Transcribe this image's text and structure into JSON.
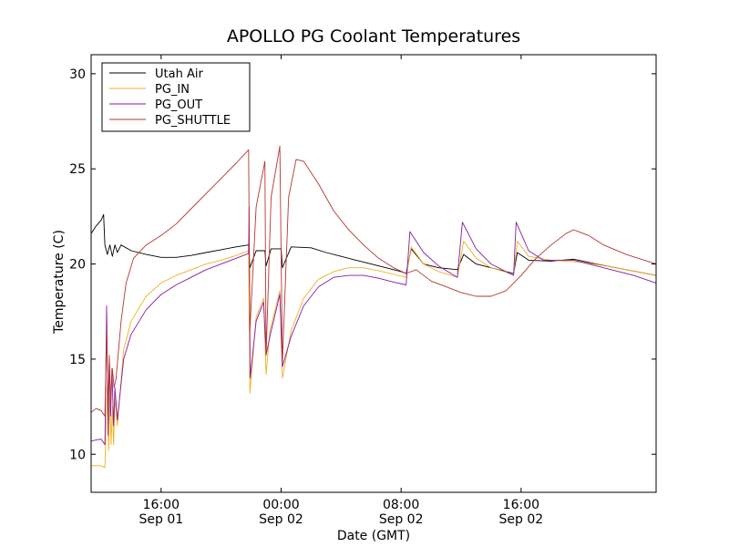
{
  "chart_data": {
    "type": "line",
    "title": "APOLLO PG Coolant Temperatures",
    "xlabel": "Date (GMT)",
    "ylabel": "Temperature (C)",
    "ylim": [
      8,
      31
    ],
    "yticks": [
      10,
      15,
      20,
      25,
      30
    ],
    "xlim": [
      "2015-09-01T11:20",
      "2015-09-03T01:00"
    ],
    "xticks": [
      {
        "at": "2015-09-01T16:00",
        "time": "16:00",
        "date": "Sep 01"
      },
      {
        "at": "2015-09-02T00:00",
        "time": "00:00",
        "date": "Sep 02"
      },
      {
        "at": "2015-09-02T08:00",
        "time": "08:00",
        "date": "Sep 02"
      },
      {
        "at": "2015-09-02T16:00",
        "time": "16:00",
        "date": "Sep 02"
      }
    ],
    "legend_position": "top-left",
    "grid": false,
    "series": [
      {
        "name": "Utah Air",
        "color": "#000000",
        "points": [
          [
            "2015-09-01T11:20",
            21.6
          ],
          [
            "2015-09-01T11:40",
            22.0
          ],
          [
            "2015-09-01T12:00",
            22.3
          ],
          [
            "2015-09-01T12:10",
            22.6
          ],
          [
            "2015-09-01T12:15",
            21.0
          ],
          [
            "2015-09-01T12:25",
            20.5
          ],
          [
            "2015-09-01T12:35",
            21.0
          ],
          [
            "2015-09-01T12:45",
            20.4
          ],
          [
            "2015-09-01T12:55",
            21.0
          ],
          [
            "2015-09-01T13:05",
            20.6
          ],
          [
            "2015-09-01T13:20",
            21.0
          ],
          [
            "2015-09-01T14:00",
            20.7
          ],
          [
            "2015-09-01T15:00",
            20.5
          ],
          [
            "2015-09-01T16:00",
            20.35
          ],
          [
            "2015-09-01T17:00",
            20.35
          ],
          [
            "2015-09-01T18:00",
            20.45
          ],
          [
            "2015-09-01T19:00",
            20.6
          ],
          [
            "2015-09-01T20:00",
            20.75
          ],
          [
            "2015-09-01T21:00",
            20.9
          ],
          [
            "2015-09-01T21:50",
            21.0
          ],
          [
            "2015-09-01T21:55",
            19.8
          ],
          [
            "2015-09-01T22:20",
            20.7
          ],
          [
            "2015-09-01T22:55",
            20.7
          ],
          [
            "2015-09-01T23:00",
            19.9
          ],
          [
            "2015-09-01T23:20",
            20.8
          ],
          [
            "2015-09-02T00:00",
            20.8
          ],
          [
            "2015-09-02T00:05",
            19.8
          ],
          [
            "2015-09-02T00:40",
            20.9
          ],
          [
            "2015-09-02T02:00",
            20.85
          ],
          [
            "2015-09-02T03:00",
            20.6
          ],
          [
            "2015-09-02T04:00",
            20.4
          ],
          [
            "2015-09-02T05:00",
            20.2
          ],
          [
            "2015-09-02T06:00",
            20.0
          ],
          [
            "2015-09-02T07:00",
            19.8
          ],
          [
            "2015-09-02T08:00",
            19.6
          ],
          [
            "2015-09-02T08:20",
            19.5
          ],
          [
            "2015-09-02T08:40",
            20.8
          ],
          [
            "2015-09-02T09:30",
            20.0
          ],
          [
            "2015-09-02T10:30",
            19.8
          ],
          [
            "2015-09-02T11:45",
            19.7
          ],
          [
            "2015-09-02T12:10",
            20.5
          ],
          [
            "2015-09-02T13:00",
            20.0
          ],
          [
            "2015-09-02T14:00",
            19.8
          ],
          [
            "2015-09-02T15:30",
            19.5
          ],
          [
            "2015-09-02T15:45",
            20.6
          ],
          [
            "2015-09-02T16:30",
            20.2
          ],
          [
            "2015-09-02T18:00",
            20.15
          ],
          [
            "2015-09-02T19:30",
            20.25
          ],
          [
            "2015-09-02T21:00",
            20.0
          ],
          [
            "2015-09-02T23:00",
            19.7
          ],
          [
            "2015-09-03T01:00",
            19.4
          ]
        ]
      },
      {
        "name": "PG_IN",
        "color": "#f0b020",
        "points": [
          [
            "2015-09-01T11:20",
            9.4
          ],
          [
            "2015-09-01T12:00",
            9.4
          ],
          [
            "2015-09-01T12:15",
            9.3
          ],
          [
            "2015-09-01T12:25",
            13.5
          ],
          [
            "2015-09-01T12:30",
            10.2
          ],
          [
            "2015-09-01T12:35",
            13.0
          ],
          [
            "2015-09-01T12:40",
            10.5
          ],
          [
            "2015-09-01T12:45",
            12.5
          ],
          [
            "2015-09-01T12:50",
            10.5
          ],
          [
            "2015-09-01T12:55",
            13.0
          ],
          [
            "2015-09-01T13:05",
            11.5
          ],
          [
            "2015-09-01T13:30",
            15.5
          ],
          [
            "2015-09-01T14:00",
            17.0
          ],
          [
            "2015-09-01T15:00",
            18.3
          ],
          [
            "2015-09-01T16:00",
            19.0
          ],
          [
            "2015-09-01T17:00",
            19.4
          ],
          [
            "2015-09-01T18:00",
            19.7
          ],
          [
            "2015-09-01T19:00",
            20.0
          ],
          [
            "2015-09-01T20:00",
            20.2
          ],
          [
            "2015-09-01T21:00",
            20.45
          ],
          [
            "2015-09-01T21:50",
            20.7
          ],
          [
            "2015-09-01T21:55",
            13.2
          ],
          [
            "2015-09-01T22:20",
            17.2
          ],
          [
            "2015-09-01T22:50",
            18.2
          ],
          [
            "2015-09-01T23:00",
            14.2
          ],
          [
            "2015-09-01T23:15",
            16.5
          ],
          [
            "2015-09-01T23:55",
            18.6
          ],
          [
            "2015-09-02T00:05",
            14.0
          ],
          [
            "2015-09-02T00:40",
            16.5
          ],
          [
            "2015-09-02T01:30",
            18.2
          ],
          [
            "2015-09-02T02:30",
            19.2
          ],
          [
            "2015-09-02T03:30",
            19.6
          ],
          [
            "2015-09-02T04:30",
            19.8
          ],
          [
            "2015-09-02T05:30",
            19.8
          ],
          [
            "2015-09-02T06:30",
            19.65
          ],
          [
            "2015-09-02T07:30",
            19.45
          ],
          [
            "2015-09-02T08:20",
            19.3
          ],
          [
            "2015-09-02T08:40",
            20.9
          ],
          [
            "2015-09-02T09:30",
            20.0
          ],
          [
            "2015-09-02T10:30",
            19.6
          ],
          [
            "2015-09-02T11:45",
            19.3
          ],
          [
            "2015-09-02T12:10",
            21.2
          ],
          [
            "2015-09-02T13:00",
            20.3
          ],
          [
            "2015-09-02T14:00",
            19.8
          ],
          [
            "2015-09-02T15:30",
            19.45
          ],
          [
            "2015-09-02T15:45",
            21.2
          ],
          [
            "2015-09-02T16:30",
            20.4
          ],
          [
            "2015-09-02T18:00",
            20.2
          ],
          [
            "2015-09-02T20:00",
            20.1
          ],
          [
            "2015-09-02T22:00",
            19.85
          ],
          [
            "2015-09-03T01:00",
            19.4
          ]
        ]
      },
      {
        "name": "PG_OUT",
        "color": "#8a1a9e",
        "points": [
          [
            "2015-09-01T11:20",
            10.7
          ],
          [
            "2015-09-01T12:00",
            10.8
          ],
          [
            "2015-09-01T12:15",
            10.5
          ],
          [
            "2015-09-01T12:22",
            17.8
          ],
          [
            "2015-09-01T12:28",
            11.0
          ],
          [
            "2015-09-01T12:33",
            15.0
          ],
          [
            "2015-09-01T12:38",
            12.0
          ],
          [
            "2015-09-01T12:43",
            14.5
          ],
          [
            "2015-09-01T12:50",
            11.5
          ],
          [
            "2015-09-01T12:55",
            13.5
          ],
          [
            "2015-09-01T13:05",
            11.8
          ],
          [
            "2015-09-01T13:30",
            15.0
          ],
          [
            "2015-09-01T14:00",
            16.3
          ],
          [
            "2015-09-01T15:00",
            17.6
          ],
          [
            "2015-09-01T16:00",
            18.4
          ],
          [
            "2015-09-01T17:00",
            18.9
          ],
          [
            "2015-09-01T18:00",
            19.3
          ],
          [
            "2015-09-01T19:00",
            19.7
          ],
          [
            "2015-09-01T20:00",
            20.0
          ],
          [
            "2015-09-01T21:00",
            20.3
          ],
          [
            "2015-09-01T21:50",
            20.55
          ],
          [
            "2015-09-01T21:52",
            23.0
          ],
          [
            "2015-09-01T21:56",
            14.0
          ],
          [
            "2015-09-01T22:20",
            17.0
          ],
          [
            "2015-09-01T22:50",
            18.0
          ],
          [
            "2015-09-01T23:00",
            15.2
          ],
          [
            "2015-09-01T23:15",
            16.2
          ],
          [
            "2015-09-01T23:55",
            18.4
          ],
          [
            "2015-09-02T00:05",
            14.6
          ],
          [
            "2015-09-02T00:40",
            16.2
          ],
          [
            "2015-09-02T01:30",
            17.8
          ],
          [
            "2015-09-02T02:30",
            18.8
          ],
          [
            "2015-09-02T03:30",
            19.3
          ],
          [
            "2015-09-02T04:30",
            19.4
          ],
          [
            "2015-09-02T05:30",
            19.4
          ],
          [
            "2015-09-02T06:30",
            19.25
          ],
          [
            "2015-09-02T07:30",
            19.05
          ],
          [
            "2015-09-02T08:20",
            18.9
          ],
          [
            "2015-09-02T08:35",
            21.7
          ],
          [
            "2015-09-02T09:30",
            20.6
          ],
          [
            "2015-09-02T10:30",
            19.9
          ],
          [
            "2015-09-02T11:45",
            19.3
          ],
          [
            "2015-09-02T12:05",
            22.2
          ],
          [
            "2015-09-02T13:00",
            20.8
          ],
          [
            "2015-09-02T14:00",
            20.0
          ],
          [
            "2015-09-02T15:30",
            19.4
          ],
          [
            "2015-09-02T15:40",
            22.2
          ],
          [
            "2015-09-02T16:30",
            20.7
          ],
          [
            "2015-09-02T17:30",
            20.2
          ],
          [
            "2015-09-02T19:30",
            20.2
          ],
          [
            "2015-09-02T21:30",
            19.8
          ],
          [
            "2015-09-02T23:30",
            19.4
          ],
          [
            "2015-09-03T01:00",
            19.0
          ]
        ]
      },
      {
        "name": "PG_SHUTTLE",
        "color": "#b5362e",
        "points": [
          [
            "2015-09-01T11:20",
            12.2
          ],
          [
            "2015-09-01T11:40",
            12.4
          ],
          [
            "2015-09-01T12:00",
            12.3
          ],
          [
            "2015-09-01T12:15",
            12.0
          ],
          [
            "2015-09-01T12:22",
            16.5
          ],
          [
            "2015-09-01T12:28",
            12.5
          ],
          [
            "2015-09-01T12:33",
            15.2
          ],
          [
            "2015-09-01T12:38",
            12.8
          ],
          [
            "2015-09-01T12:45",
            14.5
          ],
          [
            "2015-09-01T12:52",
            13.5
          ],
          [
            "2015-09-01T13:00",
            14.0
          ],
          [
            "2015-09-01T13:20",
            17.0
          ],
          [
            "2015-09-01T13:40",
            19.0
          ],
          [
            "2015-09-01T14:10",
            20.3
          ],
          [
            "2015-09-01T15:00",
            21.0
          ],
          [
            "2015-09-01T16:00",
            21.5
          ],
          [
            "2015-09-01T17:00",
            22.1
          ],
          [
            "2015-09-01T18:00",
            22.9
          ],
          [
            "2015-09-01T19:00",
            23.7
          ],
          [
            "2015-09-01T20:00",
            24.5
          ],
          [
            "2015-09-01T21:00",
            25.3
          ],
          [
            "2015-09-01T21:50",
            26.0
          ],
          [
            "2015-09-01T21:55",
            16.5
          ],
          [
            "2015-09-01T22:20",
            23.0
          ],
          [
            "2015-09-01T22:55",
            25.4
          ],
          [
            "2015-09-01T23:00",
            15.2
          ],
          [
            "2015-09-01T23:20",
            23.5
          ],
          [
            "2015-09-01T23:55",
            26.2
          ],
          [
            "2015-09-02T00:05",
            14.8
          ],
          [
            "2015-09-02T00:30",
            23.5
          ],
          [
            "2015-09-02T01:00",
            25.5
          ],
          [
            "2015-09-02T01:30",
            25.4
          ],
          [
            "2015-09-02T02:30",
            24.2
          ],
          [
            "2015-09-02T03:30",
            22.8
          ],
          [
            "2015-09-02T04:30",
            21.8
          ],
          [
            "2015-09-02T05:30",
            21.0
          ],
          [
            "2015-09-02T06:30",
            20.3
          ],
          [
            "2015-09-02T07:30",
            19.8
          ],
          [
            "2015-09-02T08:20",
            19.5
          ],
          [
            "2015-09-02T09:00",
            19.7
          ],
          [
            "2015-09-02T10:00",
            19.1
          ],
          [
            "2015-09-02T11:00",
            18.8
          ],
          [
            "2015-09-02T12:00",
            18.5
          ],
          [
            "2015-09-02T13:00",
            18.3
          ],
          [
            "2015-09-02T14:00",
            18.3
          ],
          [
            "2015-09-02T15:00",
            18.6
          ],
          [
            "2015-09-02T16:00",
            19.4
          ],
          [
            "2015-09-02T17:00",
            20.3
          ],
          [
            "2015-09-02T18:00",
            21.0
          ],
          [
            "2015-09-02T19:00",
            21.6
          ],
          [
            "2015-09-02T19:30",
            21.8
          ],
          [
            "2015-09-02T20:30",
            21.5
          ],
          [
            "2015-09-02T21:30",
            21.0
          ],
          [
            "2015-09-02T23:00",
            20.5
          ],
          [
            "2015-09-03T01:00",
            20.0
          ]
        ]
      }
    ]
  }
}
